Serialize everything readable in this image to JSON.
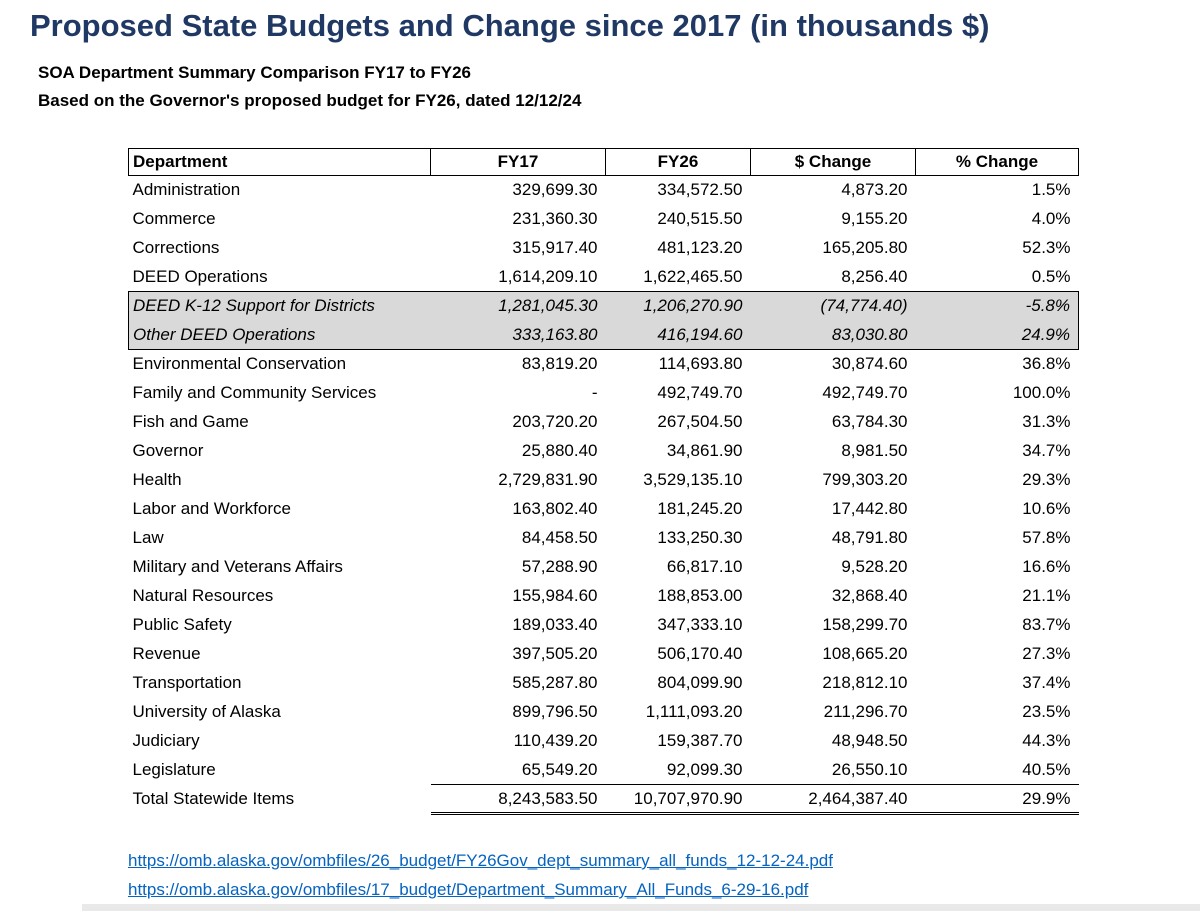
{
  "page": {
    "title": "Proposed State Budgets and Change since 2017 (in thousands $)",
    "subtitle_line1": "SOA Department Summary Comparison FY17 to FY26",
    "subtitle_line2": "Based on the Governor's proposed budget for FY26, dated 12/12/24"
  },
  "table": {
    "columns": [
      "Department",
      "FY17",
      "FY26",
      "$ Change",
      "% Change"
    ],
    "rows": [
      {
        "department": "Administration",
        "fy17": "329,699.30",
        "fy26": "334,572.50",
        "change": "4,873.20",
        "pct": "1.5%",
        "style": "normal"
      },
      {
        "department": "Commerce",
        "fy17": "231,360.30",
        "fy26": "240,515.50",
        "change": "9,155.20",
        "pct": "4.0%",
        "style": "normal"
      },
      {
        "department": "Corrections",
        "fy17": "315,917.40",
        "fy26": "481,123.20",
        "change": "165,205.80",
        "pct": "52.3%",
        "style": "normal"
      },
      {
        "department": "DEED Operations",
        "fy17": "1,614,209.10",
        "fy26": "1,622,465.50",
        "change": "8,256.40",
        "pct": "0.5%",
        "style": "normal"
      },
      {
        "department": "DEED K-12 Support for Districts",
        "fy17": "1,281,045.30",
        "fy26": "1,206,270.90",
        "change": "(74,774.40)",
        "pct": "-5.8%",
        "style": "subrow"
      },
      {
        "department": "Other DEED Operations",
        "fy17": "333,163.80",
        "fy26": "416,194.60",
        "change": "83,030.80",
        "pct": "24.9%",
        "style": "subrow"
      },
      {
        "department": "Environmental Conservation",
        "fy17": "83,819.20",
        "fy26": "114,693.80",
        "change": "30,874.60",
        "pct": "36.8%",
        "style": "normal"
      },
      {
        "department": "Family and Community Services",
        "fy17": "-",
        "fy26": "492,749.70",
        "change": "492,749.70",
        "pct": "100.0%",
        "style": "normal"
      },
      {
        "department": "Fish and Game",
        "fy17": "203,720.20",
        "fy26": "267,504.50",
        "change": "63,784.30",
        "pct": "31.3%",
        "style": "normal"
      },
      {
        "department": "Governor",
        "fy17": "25,880.40",
        "fy26": "34,861.90",
        "change": "8,981.50",
        "pct": "34.7%",
        "style": "normal"
      },
      {
        "department": "Health",
        "fy17": "2,729,831.90",
        "fy26": "3,529,135.10",
        "change": "799,303.20",
        "pct": "29.3%",
        "style": "normal"
      },
      {
        "department": "Labor and Workforce",
        "fy17": "163,802.40",
        "fy26": "181,245.20",
        "change": "17,442.80",
        "pct": "10.6%",
        "style": "normal"
      },
      {
        "department": "Law",
        "fy17": "84,458.50",
        "fy26": "133,250.30",
        "change": "48,791.80",
        "pct": "57.8%",
        "style": "normal"
      },
      {
        "department": "Military and Veterans Affairs",
        "fy17": "57,288.90",
        "fy26": "66,817.10",
        "change": "9,528.20",
        "pct": "16.6%",
        "style": "normal"
      },
      {
        "department": "Natural Resources",
        "fy17": "155,984.60",
        "fy26": "188,853.00",
        "change": "32,868.40",
        "pct": "21.1%",
        "style": "normal"
      },
      {
        "department": "Public Safety",
        "fy17": "189,033.40",
        "fy26": "347,333.10",
        "change": "158,299.70",
        "pct": "83.7%",
        "style": "normal"
      },
      {
        "department": "Revenue",
        "fy17": "397,505.20",
        "fy26": "506,170.40",
        "change": "108,665.20",
        "pct": "27.3%",
        "style": "normal"
      },
      {
        "department": "Transportation",
        "fy17": "585,287.80",
        "fy26": "804,099.90",
        "change": "218,812.10",
        "pct": "37.4%",
        "style": "normal"
      },
      {
        "department": "University of Alaska",
        "fy17": "899,796.50",
        "fy26": "1,111,093.20",
        "change": "211,296.70",
        "pct": "23.5%",
        "style": "normal"
      },
      {
        "department": "Judiciary",
        "fy17": "110,439.20",
        "fy26": "159,387.70",
        "change": "48,948.50",
        "pct": "44.3%",
        "style": "normal"
      },
      {
        "department": "Legislature",
        "fy17": "65,549.20",
        "fy26": "92,099.30",
        "change": "26,550.10",
        "pct": "40.5%",
        "style": "normal"
      }
    ],
    "total": {
      "department": "Total Statewide Items",
      "fy17": "8,243,583.50",
      "fy26": "10,707,970.90",
      "change": "2,464,387.40",
      "pct": "29.9%"
    }
  },
  "links": [
    "https://omb.alaska.gov/ombfiles/26_budget/FY26Gov_dept_summary_all_funds_12-12-24.pdf",
    "https://omb.alaska.gov/ombfiles/17_budget/Department_Summary_All_Funds_6-29-16.pdf"
  ],
  "colors": {
    "title": "#1F3864",
    "link": "#0563C1",
    "subrow_background": "#D9D9D9"
  }
}
